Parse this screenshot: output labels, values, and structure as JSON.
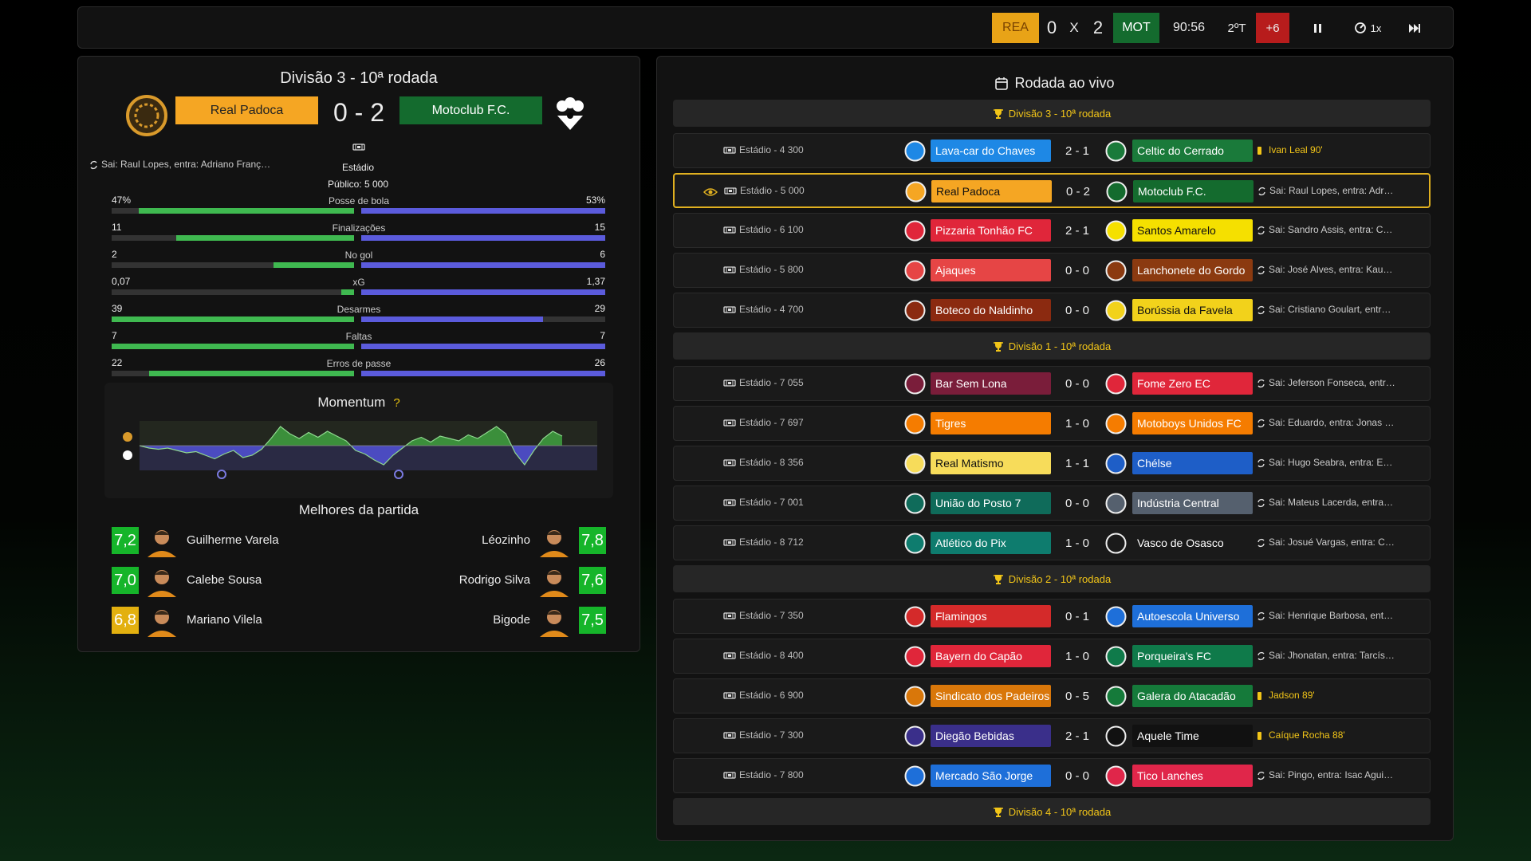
{
  "topbar": {
    "home_abbr": "REA",
    "home_color": "#e8a317",
    "home_score": 0,
    "separator": "X",
    "away_score": 2,
    "away_abbr": "MOT",
    "away_color": "#146b2e",
    "clock": "90:56",
    "period": "2ºT",
    "stoppage": "+6",
    "stoppage_color": "#b71c1c",
    "speed": "1x"
  },
  "match": {
    "title": "Divisão 3 - 10ª rodada",
    "home": {
      "name": "Real Padoca",
      "color": "#f5a623"
    },
    "score": "0 - 2",
    "away": {
      "name": "Motoclub F.C.",
      "color": "#146b2e"
    },
    "substitution": "Sai: Raul Lopes, entra: Adriano Franç…",
    "venue": "Estádio",
    "attendance": "Público: 5 000",
    "stats": [
      {
        "label": "Posse de bola",
        "home": {
          "value": 47,
          "label": "47%"
        },
        "away": {
          "value": 53,
          "label": "53%"
        }
      },
      {
        "label": "Finalizações",
        "home": 11,
        "away": 15
      },
      {
        "label": "No gol",
        "home": 2,
        "away": 6
      },
      {
        "label": "xG",
        "home": {
          "value": 0.07,
          "label": "0,07"
        },
        "away": {
          "value": 1.37,
          "label": "1,37"
        }
      },
      {
        "label": "Desarmes",
        "home": 39,
        "away": 29
      },
      {
        "label": "Faltas",
        "home": 7,
        "away": 7
      },
      {
        "label": "Erros de passe",
        "home": 22,
        "away": 26
      }
    ],
    "momentum": {
      "title": "Momentum",
      "help": "?",
      "ylim": [
        -1,
        1
      ],
      "values": [
        0,
        -0.1,
        -0.15,
        -0.1,
        -0.2,
        -0.3,
        -0.25,
        -0.4,
        -0.55,
        -0.35,
        -0.2,
        -0.5,
        -0.4,
        -0.15,
        0.3,
        0.8,
        0.5,
        0.3,
        0.55,
        0.35,
        0.6,
        0.4,
        0.2,
        -0.2,
        -0.35,
        -0.6,
        -0.8,
        -0.4,
        -0.1,
        0.2,
        0.35,
        0.15,
        0.4,
        0.3,
        0.2,
        0.45,
        0.3,
        0.55,
        0.8,
        0.5,
        -0.3,
        -0.8,
        -0.2,
        0.3,
        0.6,
        0.4
      ]
    },
    "best_title": "Melhores da partida",
    "best_home": [
      {
        "rating": {
          "value": 7.2,
          "label": "7,2"
        },
        "color": "#16b52a",
        "name": "Guilherme Varela"
      },
      {
        "rating": {
          "value": 7.0,
          "label": "7,0"
        },
        "color": "#16b52a",
        "name": "Calebe Sousa"
      },
      {
        "rating": {
          "value": 6.8,
          "label": "6,8"
        },
        "color": "#e3b00f",
        "name": "Mariano Vilela"
      }
    ],
    "best_away": [
      {
        "rating": {
          "value": 7.8,
          "label": "7,8"
        },
        "color": "#16b52a",
        "name": "Léozinho"
      },
      {
        "rating": {
          "value": 7.6,
          "label": "7,6"
        },
        "color": "#16b52a",
        "name": "Rodrigo Silva"
      },
      {
        "rating": {
          "value": 7.5,
          "label": "7,5"
        },
        "color": "#16b52a",
        "name": "Bigode"
      }
    ]
  },
  "round": {
    "title": "Rodada ao vivo",
    "groups": [
      {
        "title": "Divisão 3 - 10ª rodada",
        "matches": [
          {
            "venue": "Estádio - 4 300",
            "home": "Lava-car do Chaves",
            "home_color": "#1e88e5",
            "score": "2 - 1",
            "away": "Celtic do Cerrado",
            "away_color": "#1a7a3a",
            "event": "Ivan Leal 90'",
            "event_type": "card"
          },
          {
            "venue": "Estádio - 5 000",
            "home": "Real Padoca",
            "home_color": "#f5a623",
            "score": "0 - 2",
            "away": "Motoclub F.C.",
            "away_color": "#146b2e",
            "event": "Sai: Raul Lopes, entra: Adr…",
            "event_type": "sub",
            "selected": true
          },
          {
            "venue": "Estádio - 6 100",
            "home": "Pizzaria Tonhão FC",
            "home_color": "#e0263a",
            "score": "2 - 1",
            "away": "Santos Amarelo",
            "away_color": "#f5e000",
            "event": "Sai: Sandro Assis, entra: C…",
            "event_type": "sub"
          },
          {
            "venue": "Estádio - 5 800",
            "home": "Ajaques",
            "home_color": "#e64545",
            "score": "0 - 0",
            "away": "Lanchonete do Gordo",
            "away_color": "#8b3a10",
            "event": "Sai: José Alves, entra: Kau…",
            "event_type": "sub"
          },
          {
            "venue": "Estádio - 4 700",
            "home": "Boteco do Naldinho",
            "home_color": "#8b2a10",
            "score": "0 - 0",
            "away": "Borússia da Favela",
            "away_color": "#f2d21b",
            "event": "Sai: Cristiano Goulart, entr…",
            "event_type": "sub"
          }
        ]
      },
      {
        "title": "Divisão 1 - 10ª rodada",
        "matches": [
          {
            "venue": "Estádio - 7 055",
            "home": "Bar Sem Lona",
            "home_color": "#7a1d3a",
            "score": "0 - 0",
            "away": "Fome Zero EC",
            "away_color": "#e0263a",
            "event": "Sai: Jeferson Fonseca, entr…",
            "event_type": "sub"
          },
          {
            "venue": "Estádio - 7 697",
            "home": "Tigres",
            "home_color": "#f57c00",
            "score": "1 - 0",
            "away": "Motoboys Unidos FC",
            "away_color": "#f57c00",
            "event": "Sai: Eduardo, entra: Jonas …",
            "event_type": "sub"
          },
          {
            "venue": "Estádio - 8 356",
            "home": "Real Matismo",
            "home_color": "#f7dc5a",
            "score": "1 - 1",
            "away": "Chélse",
            "away_color": "#1e5ec7",
            "event": "Sai: Hugo Seabra, entra: E…",
            "event_type": "sub"
          },
          {
            "venue": "Estádio - 7 001",
            "home": "União do Posto 7",
            "home_color": "#0f6b5a",
            "score": "0 - 0",
            "away": "Indústria Central",
            "away_color": "#55606e",
            "event": "Sai: Mateus Lacerda, entra…",
            "event_type": "sub"
          },
          {
            "venue": "Estádio - 8 712",
            "home": "Atlético do Pix",
            "home_color": "#0e7c6e",
            "score": "1 - 0",
            "away": "Vasco de Osasco",
            "away_color": "#1a1a1a",
            "event": "Sai: Josué Vargas, entra: C…",
            "event_type": "sub"
          }
        ]
      },
      {
        "title": "Divisão 2 - 10ª rodada",
        "matches": [
          {
            "venue": "Estádio - 7 350",
            "home": "Flamingos",
            "home_color": "#d42a2a",
            "score": "0 - 1",
            "away": "Autoescola Universo",
            "away_color": "#1e6fd9",
            "event": "Sai: Henrique Barbosa, ent…",
            "event_type": "sub"
          },
          {
            "venue": "Estádio - 8 400",
            "home": "Bayern do Capão",
            "home_color": "#e0263a",
            "score": "1 - 0",
            "away": "Porqueira's FC",
            "away_color": "#0f7a4a",
            "event": "Sai: Jhonatan, entra: Tarcís…",
            "event_type": "sub"
          },
          {
            "venue": "Estádio - 6 900",
            "home": "Sindicato dos Padeiros",
            "home_color": "#d9770a",
            "score": "0 - 5",
            "away": "Galera do Atacadão",
            "away_color": "#157a3a",
            "event": "Jadson 89'",
            "event_type": "card"
          },
          {
            "venue": "Estádio - 7 300",
            "home": "Diegão Bebidas",
            "home_color": "#3a2f8a",
            "score": "2 - 1",
            "away": "Aquele Time",
            "away_color": "#111111",
            "event": "Caíque Rocha 88'",
            "event_type": "card"
          },
          {
            "venue": "Estádio - 7 800",
            "home": "Mercado São Jorge",
            "home_color": "#1e6fd9",
            "score": "0 - 0",
            "away": "Tico Lanches",
            "away_color": "#e0264a",
            "event": "Sai: Pingo, entra: Isac Agui…",
            "event_type": "sub"
          }
        ]
      },
      {
        "title": "Divisão 4 - 10ª rodada",
        "matches": []
      }
    ]
  }
}
